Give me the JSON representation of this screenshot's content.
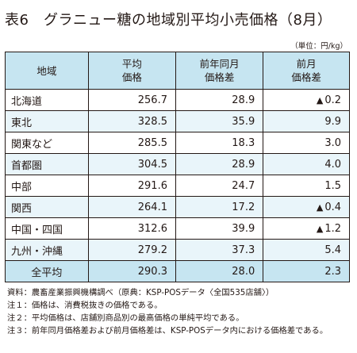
{
  "title": "表6　グラニュー糖の地域別平均小売価格（8月）",
  "unit": "（単位：円/kg）",
  "table": {
    "headers": {
      "region": "地域",
      "avg_price_1": "平均",
      "avg_price_2": "価格",
      "yoy_1": "前年同月",
      "yoy_2": "価格差",
      "mom_1": "前月",
      "mom_2": "価格差"
    },
    "rows": [
      {
        "region": "北海道",
        "price": "256.7",
        "yoy": "28.9",
        "mom_mark": "▲",
        "mom": "0.2"
      },
      {
        "region": "東北",
        "price": "328.5",
        "yoy": "35.9",
        "mom_mark": "",
        "mom": "9.9"
      },
      {
        "region": "関東など",
        "price": "285.5",
        "yoy": "18.3",
        "mom_mark": "",
        "mom": "3.0"
      },
      {
        "region": "首都圏",
        "price": "304.5",
        "yoy": "28.9",
        "mom_mark": "",
        "mom": "4.0"
      },
      {
        "region": "中部",
        "price": "291.6",
        "yoy": "24.7",
        "mom_mark": "",
        "mom": "1.5"
      },
      {
        "region": "関西",
        "price": "264.1",
        "yoy": "17.2",
        "mom_mark": "▲",
        "mom": "0.4"
      },
      {
        "region": "中国・四国",
        "price": "312.6",
        "yoy": "39.9",
        "mom_mark": "▲",
        "mom": "1.2"
      },
      {
        "region": "九州・沖縄",
        "price": "279.2",
        "yoy": "37.3",
        "mom_mark": "",
        "mom": "5.4"
      },
      {
        "region": "全平均",
        "price": "290.3",
        "yoy": "28.0",
        "mom_mark": "",
        "mom": "2.3"
      }
    ]
  },
  "notes": [
    {
      "label": "資料：",
      "text": "農畜産業振興機構調べ（原典：KSP-POSデータ〈全国535店舗〉）"
    },
    {
      "label": "注１：",
      "text": "価格は、消費税抜きの価格である。"
    },
    {
      "label": "注２：",
      "text": "平均価格は、店舗別商品別の最高価格の単純平均である。"
    },
    {
      "label": "注３：",
      "text": "前年同月価格差および前月価格差は、KSP-POSデータ内における価格差である。"
    }
  ]
}
